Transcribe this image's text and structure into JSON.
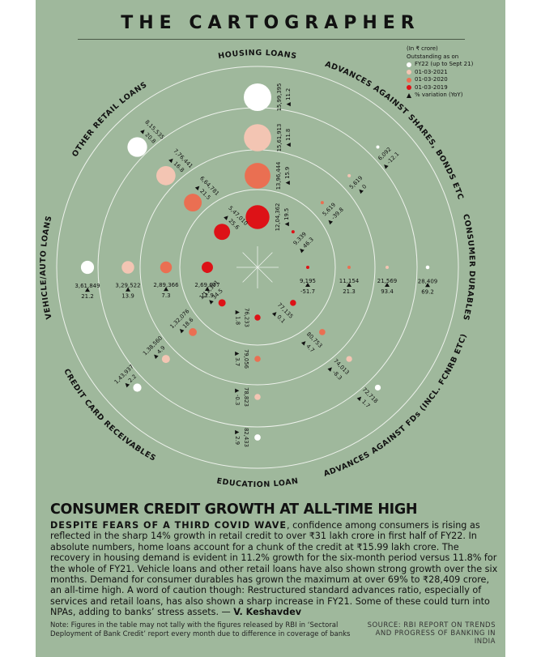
{
  "masthead": "THE CARTOGRAPHER",
  "legend": {
    "unit": "(In ₹ crore)",
    "outstanding_label": "Outstanding as on",
    "items": [
      {
        "label": "FY22 (up to Sept 21)",
        "color": "#ffffff"
      },
      {
        "label": "01-03-2021",
        "color": "#f3c5b3"
      },
      {
        "label": "01-03-2020",
        "color": "#ea6f52"
      },
      {
        "label": "01-03-2019",
        "color": "#dd1217"
      }
    ],
    "variation_label": "% variation (YoY)"
  },
  "chart_data": {
    "type": "radial-bubble",
    "series_names": [
      "FY22 (up to Sept 21)",
      "01-03-2021",
      "01-03-2020",
      "01-03-2019"
    ],
    "colors": [
      "#ffffff",
      "#f3c5b3",
      "#ea6f52",
      "#dd1217"
    ],
    "categories": [
      {
        "name": "HOUSING LOANS",
        "values": [
          "15,99,395",
          "15,61,913",
          "13,96,444",
          "12,04,362"
        ],
        "raw": [
          1599395,
          1561913,
          1396444,
          1204362
        ],
        "yoy": [
          "11.2",
          "11.8",
          "15.9",
          "19.5"
        ]
      },
      {
        "name": "ADVANCES AGAINST SHARES, BONDS ETC",
        "values": [
          "6,092",
          "5,619",
          "5,619",
          "9,339"
        ],
        "raw": [
          6092,
          5619,
          5619,
          9339
        ],
        "yoy": [
          "-12.1",
          "0",
          "-39.8",
          "46.3"
        ]
      },
      {
        "name": "CONSUMER DURABLES",
        "values": [
          "28,409",
          "21,569",
          "11,154",
          "9,195"
        ],
        "raw": [
          28409,
          21569,
          11154,
          9195
        ],
        "yoy": [
          "69.2",
          "93.4",
          "21.3",
          "-51.7"
        ]
      },
      {
        "name": "ADVANCES AGAINST FDs (INCL. FCNRB ETC)",
        "values": [
          "72,718",
          "74,013",
          "80,753",
          "77,135"
        ],
        "raw": [
          72718,
          74013,
          80753,
          77135
        ],
        "yoy": [
          "1.7",
          "-8.3",
          "4.7",
          "0.1"
        ]
      },
      {
        "name": "EDUCATION LOAN",
        "values": [
          "82,433",
          "78,823",
          "79,056",
          "76,233"
        ],
        "raw": [
          82433,
          78823,
          79056,
          76233
        ],
        "yoy": [
          "2.9",
          "-0.3",
          "3.7",
          "1.8"
        ]
      },
      {
        "name": "CREDIT CARD RECEIVABLES",
        "values": [
          "1,43,937",
          "1,38,560",
          "1,32,076",
          "1,11,361"
        ],
        "raw": [
          143937,
          138560,
          132076,
          111361
        ],
        "yoy": [
          "2.2",
          "4.9",
          "18.6",
          "34.5"
        ]
      },
      {
        "name": "VEHICLE/AUTO LOANS",
        "values": [
          "3,61,849",
          "3,29,522",
          "2,89,366",
          "2,69,677"
        ],
        "raw": [
          361849,
          329522,
          289366,
          269677
        ],
        "yoy": [
          "21.2",
          "13.9",
          "7.3",
          "12.9"
        ]
      },
      {
        "name": "OTHER RETAIL LOANS",
        "values": [
          "8,15,535",
          "7,76,441",
          "6,64,781",
          "5,47,010"
        ],
        "raw": [
          815535,
          776441,
          664781,
          547010
        ],
        "yoy": [
          "20.8",
          "16.8",
          "21.5",
          "25.6"
        ]
      }
    ]
  },
  "article": {
    "headline": "CONSUMER CREDIT GROWTH AT ALL-TIME HIGH",
    "lead": "DESPITE FEARS OF A THIRD COVID WAVE",
    "body": ", confidence among consumers is rising as reflected in the sharp 14% growth in retail credit to over ₹31 lakh crore in first half of FY22. In absolute numbers, home loans account for a chunk of the credit at ₹15.99 lakh crore. The recovery in housing demand is evident in 11.2% growth for the six-month period versus 11.8% for the whole of FY21. Vehicle loans and other retail loans have also shown strong growth over the six months. Demand for consumer durables has grown the maximum at over 69% to ₹28,409 crore, an all-time high. A word of caution though: Restructured standard advances ratio, especially of services and retail loans, has also shown a sharp increase in FY21. Some of these could turn into NPAs, adding to banks’ stress assets. — ",
    "byline": "V. Keshavdev"
  },
  "note": "Note: Figures in the table may not tally with the figures released by RBI in ‘Sectoral Deployment of Bank Credit’ report every month due to difference in coverage of banks",
  "source": "SOURCE: RBI REPORT ON TRENDS AND PROGRESS OF BANKING IN INDIA"
}
